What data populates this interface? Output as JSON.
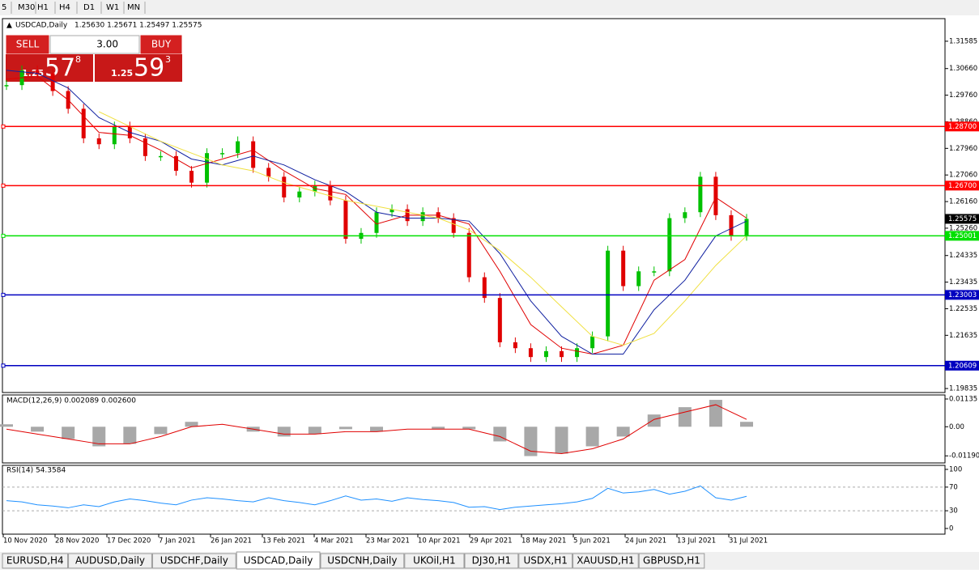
{
  "toolbar": {
    "timeframes": [
      "5",
      "M30",
      "H1",
      "H4",
      "D1",
      "W1",
      "MN"
    ]
  },
  "trade_panel": {
    "sell": "SELL",
    "buy": "BUY",
    "volume": "3.00",
    "bid_big": "1.25",
    "bid_pips": "57",
    "bid_point": "8",
    "ask_big": "1.25",
    "ask_pips": "59",
    "ask_point": "3"
  },
  "chart": {
    "type": "candlestick",
    "symbol": "USDCAD,Daily",
    "ohlc": "1.25630 1.25671 1.25497 1.25575",
    "ylim": [
      1.197,
      1.3235
    ],
    "yticks": [
      1.31585,
      {
        "value": 1.3066,
        "label": "1.30660"
      },
      {
        "value": 1.2976,
        "label": "1.29760"
      },
      {
        "value": 1.2886,
        "label": "1.28860"
      },
      {
        "value": 1.2796,
        "label": "1.27960"
      },
      {
        "value": 1.2706,
        "label": "1.27060"
      },
      {
        "value": 1.2616,
        "label": "1.26160"
      },
      {
        "value": 1.2526,
        "label": "1.25260"
      },
      1.24335,
      1.23435,
      1.22535,
      1.21635,
      1.19835
    ],
    "closes": [
      1.301,
      1.306,
      1.305,
      1.299,
      1.293,
      1.283,
      1.281,
      1.287,
      1.283,
      1.277,
      1.277,
      1.272,
      1.268,
      1.278,
      1.278,
      1.282,
      1.273,
      1.27,
      1.263,
      1.265,
      1.267,
      1.262,
      1.249,
      1.251,
      1.258,
      1.259,
      1.255,
      1.258,
      1.256,
      1.251,
      1.236,
      1.229,
      1.214,
      1.212,
      1.209,
      1.211,
      1.209,
      1.212,
      1.216,
      1.245,
      1.233,
      1.238,
      1.238,
      1.256,
      1.258,
      1.27,
      1.257,
      1.25,
      1.25575
    ],
    "up_color": "#00c000",
    "down_color": "#e00000",
    "moving_averages": [
      {
        "color": "#e00000",
        "values": [
          1.303,
          1.304,
          1.296,
          1.285,
          1.284,
          1.279,
          1.273,
          1.276,
          1.279,
          1.272,
          1.266,
          1.264,
          1.254,
          1.257,
          1.257,
          1.254,
          1.238,
          1.22,
          1.212,
          1.21,
          1.213,
          1.235,
          1.242,
          1.263,
          1.256
        ]
      },
      {
        "color": "#1020a0",
        "values": [
          1.306,
          1.305,
          1.3,
          1.29,
          1.285,
          1.282,
          1.276,
          1.274,
          1.277,
          1.274,
          1.269,
          1.265,
          1.258,
          1.256,
          1.256,
          1.255,
          1.244,
          1.228,
          1.216,
          1.21,
          1.21,
          1.225,
          1.235,
          1.25,
          1.255
        ]
      },
      {
        "color": "#f0e040",
        "values": [
          null,
          null,
          null,
          1.292,
          1.287,
          1.282,
          1.278,
          1.274,
          1.272,
          1.268,
          1.265,
          1.262,
          1.26,
          1.258,
          1.256,
          1.252,
          1.245,
          1.236,
          1.226,
          1.216,
          1.213,
          1.217,
          1.228,
          1.24,
          1.25
        ]
      }
    ],
    "levels": [
      {
        "value": 1.287,
        "label": "1.28700",
        "color": "#ff0000"
      },
      {
        "value": 1.267,
        "label": "1.26700",
        "color": "#ff0000"
      },
      {
        "value": 1.25001,
        "label": "1.25001",
        "color": "#00e000"
      },
      {
        "value": 1.23003,
        "label": "1.23003",
        "color": "#0000c0"
      },
      {
        "value": 1.20609,
        "label": "1.20609",
        "color": "#0000c0"
      }
    ]
  },
  "macd": {
    "label": "MACD(12,26,9) 0.002089 0.002600",
    "ylim": [
      -0.0148,
      0.013
    ],
    "yticks": [
      0.01135,
      {
        "value": 0,
        "label": "0.00"
      },
      -0.011904
    ],
    "histogram": [
      0.001,
      -0.002,
      -0.005,
      -0.008,
      -0.007,
      -0.003,
      0.002,
      0,
      -0.002,
      -0.004,
      -0.003,
      -0.001,
      -0.002,
      0,
      -0.001,
      -0.001,
      -0.006,
      -0.012,
      -0.011,
      -0.008,
      -0.004,
      0.005,
      0.008,
      0.011,
      0.002
    ],
    "signal": [
      -0.001,
      -0.003,
      -0.005,
      -0.007,
      -0.007,
      -0.004,
      0,
      0.001,
      -0.001,
      -0.003,
      -0.003,
      -0.002,
      -0.002,
      -0.001,
      -0.001,
      -0.001,
      -0.004,
      -0.01,
      -0.011,
      -0.009,
      -0.005,
      0.003,
      0.006,
      0.009,
      0.003
    ],
    "hist_color": "#a8a8a8",
    "signal_color": "#e00000"
  },
  "rsi": {
    "label": "RSI(14) 54.3584",
    "ylim": [
      -9.6,
      106.8
    ],
    "yticks": [
      100,
      70,
      30,
      0
    ],
    "levels": [
      70,
      30
    ],
    "color": "#1e90ff",
    "values": [
      47,
      45,
      40,
      38,
      35,
      40,
      37,
      45,
      50,
      47,
      43,
      40,
      48,
      52,
      50,
      47,
      45,
      52,
      47,
      44,
      40,
      47,
      55,
      48,
      50,
      46,
      52,
      49,
      47,
      44,
      36,
      37,
      32,
      36,
      38,
      40,
      42,
      45,
      51,
      68,
      60,
      62,
      66,
      58,
      63,
      72,
      52,
      48,
      54.3584
    ]
  },
  "dates": [
    "10 Nov 2020",
    "28 Nov 2020",
    "17 Dec 2020",
    "7 Jan 2021",
    "26 Jan 2021",
    "13 Feb 2021",
    "4 Mar 2021",
    "23 Mar 2021",
    "10 Apr 2021",
    "29 Apr 2021",
    "18 May 2021",
    "5 Jun 2021",
    "24 Jun 2021",
    "13 Jul 2021",
    "31 Jul 2021"
  ],
  "tabs": [
    "EURUSD,H4",
    "AUDUSD,Daily",
    "USDCHF,Daily",
    "USDCAD,Daily",
    "USDCNH,Daily",
    "UKOil,H1",
    "DJ30,H1",
    "USDX,H1",
    "XAUUSD,H1",
    "GBPUSD,H1"
  ]
}
